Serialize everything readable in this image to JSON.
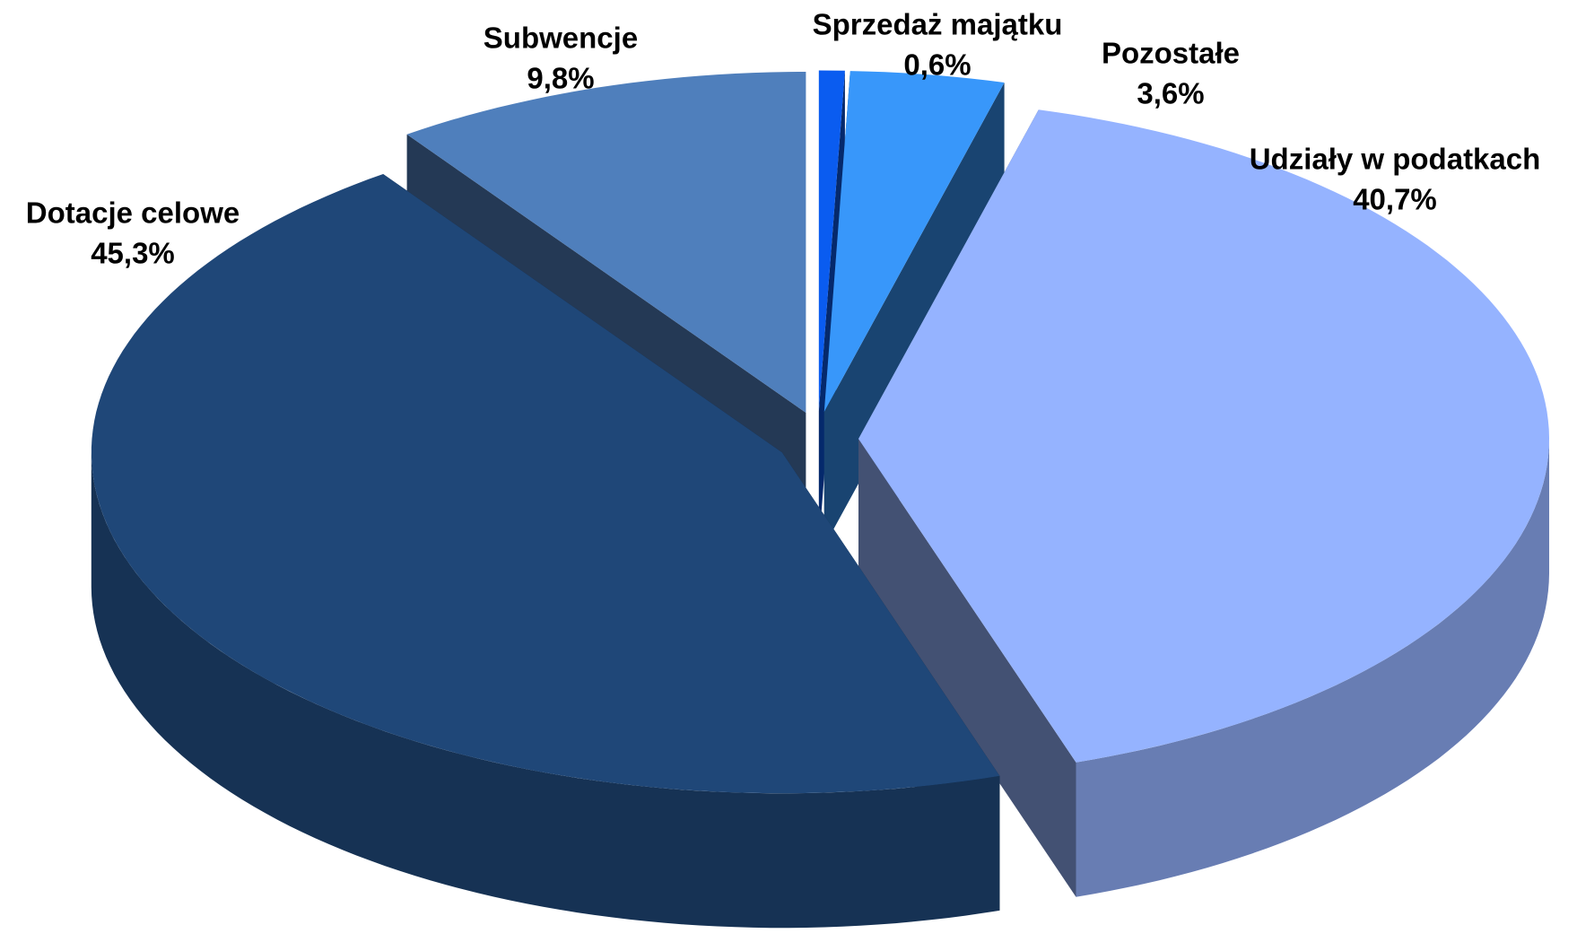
{
  "chart_data": {
    "type": "pie3d",
    "categories": [
      "Sprzedaż majątku",
      "Pozostałe",
      "Udziały w podatkach",
      "Dotacje celowe",
      "Subwencje"
    ],
    "values": [
      0.6,
      3.6,
      40.7,
      45.3,
      9.8
    ],
    "value_labels": [
      "0,6%",
      "3,6%",
      "40,7%",
      "45,3%",
      "9,8%"
    ],
    "colors": [
      "#0a5cf0",
      "#3897fa",
      "#95b3ff",
      "#1f4778",
      "#4f7fbc"
    ]
  }
}
